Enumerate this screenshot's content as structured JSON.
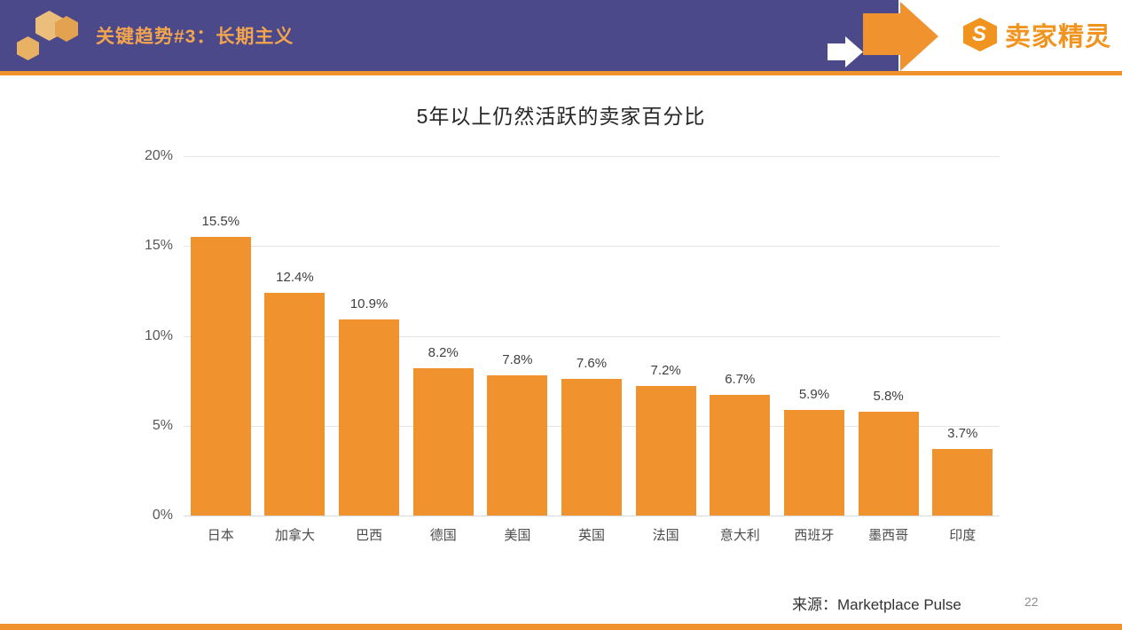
{
  "header": {
    "title": "关键趋势#3：长期主义",
    "brand_initial": "S",
    "brand_name": "卖家精灵",
    "colors": {
      "purple": "#4B4989",
      "orange": "#F0932F"
    }
  },
  "chart_data": {
    "type": "bar",
    "title": "5年以上仍然活跃的卖家百分比",
    "categories": [
      "日本",
      "加拿大",
      "巴西",
      "德国",
      "美国",
      "英国",
      "法国",
      "意大利",
      "西班牙",
      "墨西哥",
      "印度"
    ],
    "values": [
      15.5,
      12.4,
      10.9,
      8.2,
      7.8,
      7.6,
      7.2,
      6.7,
      5.9,
      5.8,
      3.7
    ],
    "value_labels": [
      "15.5%",
      "12.4%",
      "10.9%",
      "8.2%",
      "7.8%",
      "7.6%",
      "7.2%",
      "6.7%",
      "5.9%",
      "5.8%",
      "3.7%"
    ],
    "xlabel": "",
    "ylabel": "",
    "ylim": [
      0,
      20
    ],
    "y_ticks": [
      {
        "value": 20,
        "label": "20%"
      },
      {
        "value": 15,
        "label": "15%"
      },
      {
        "value": 10,
        "label": "10%"
      },
      {
        "value": 5,
        "label": "5%"
      },
      {
        "value": 0,
        "label": "0%"
      }
    ],
    "grid": true,
    "legend": false,
    "bar_color": "#F0932F"
  },
  "footer": {
    "source": "来源：Marketplace Pulse",
    "page_number": "22"
  }
}
